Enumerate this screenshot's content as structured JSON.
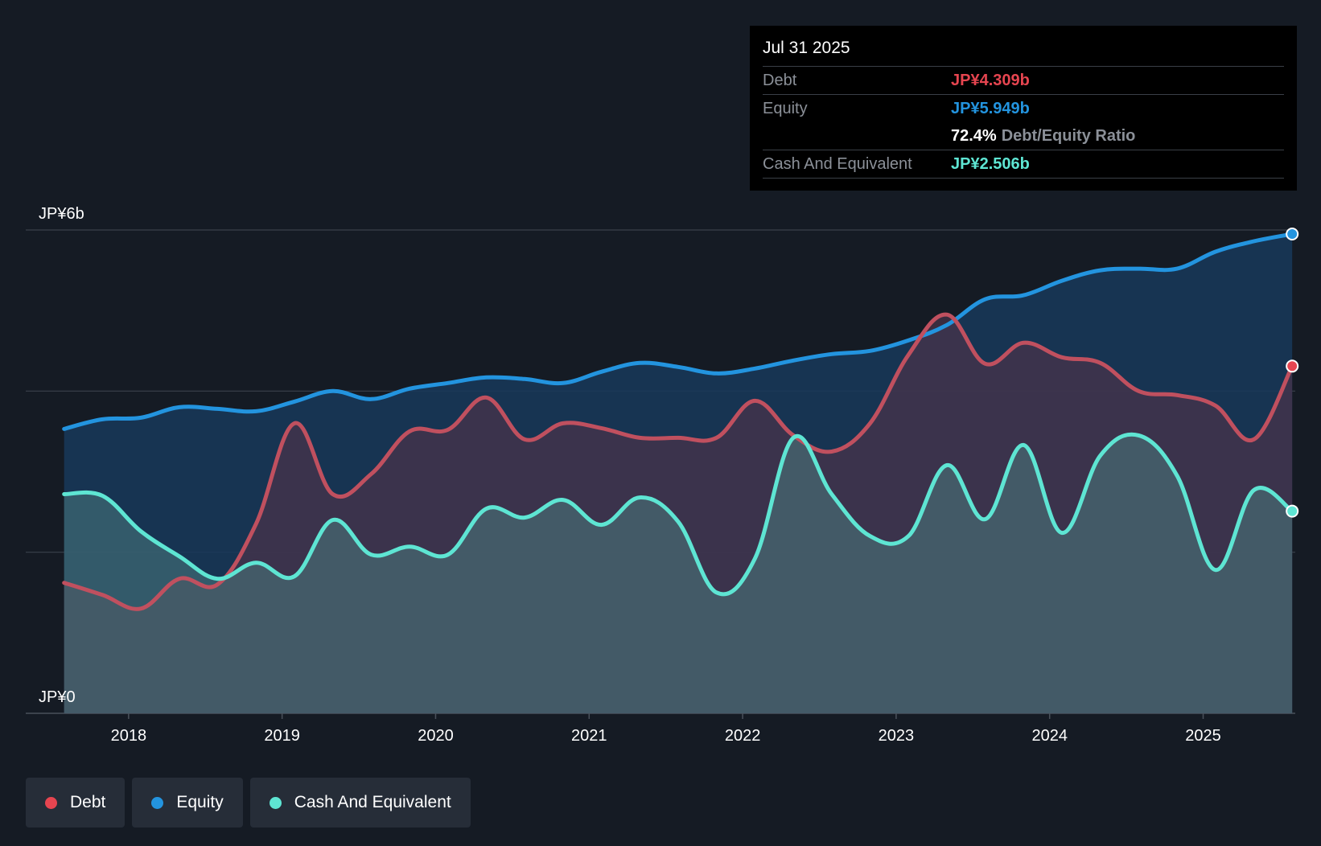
{
  "tooltip": {
    "date": "Jul 31 2025",
    "debt_label": "Debt",
    "debt_value": "JP¥4.309b",
    "equity_label": "Equity",
    "equity_value": "JP¥5.949b",
    "ratio_value": "72.4%",
    "ratio_label": "Debt/Equity Ratio",
    "cash_label": "Cash And Equivalent",
    "cash_value": "JP¥2.506b"
  },
  "legend": {
    "debt": "Debt",
    "equity": "Equity",
    "cash": "Cash And Equivalent"
  },
  "colors": {
    "background": "#151b24",
    "debt": "#e64550",
    "debt_line": "#c0505f",
    "equity": "#2394df",
    "cash": "#5ee5d3"
  },
  "chart_data": {
    "type": "area",
    "title": "",
    "xlabel": "",
    "ylabel": "",
    "y_ticks": [
      {
        "value": 6,
        "label": "JP¥6b"
      },
      {
        "value": 0,
        "label": "JP¥0"
      }
    ],
    "ylim": [
      0,
      6
    ],
    "xlim": [
      2017.33,
      2025.6
    ],
    "x_ticks": [
      {
        "value": 2018,
        "label": "2018"
      },
      {
        "value": 2019,
        "label": "2019"
      },
      {
        "value": 2020,
        "label": "2020"
      },
      {
        "value": 2021,
        "label": "2021"
      },
      {
        "value": 2022,
        "label": "2022"
      },
      {
        "value": 2023,
        "label": "2023"
      },
      {
        "value": 2024,
        "label": "2024"
      },
      {
        "value": 2025,
        "label": "2025"
      }
    ],
    "gridlines": [
      2,
      4,
      6
    ],
    "series": [
      {
        "name": "Equity",
        "x": [
          2017.58,
          2017.83,
          2018.08,
          2018.33,
          2018.58,
          2018.83,
          2019.08,
          2019.33,
          2019.58,
          2019.83,
          2020.08,
          2020.33,
          2020.58,
          2020.83,
          2021.08,
          2021.33,
          2021.58,
          2021.83,
          2022.08,
          2022.33,
          2022.58,
          2022.83,
          2023.08,
          2023.33,
          2023.58,
          2023.83,
          2024.08,
          2024.33,
          2024.58,
          2024.83,
          2025.08,
          2025.33,
          2025.58
        ],
        "values": [
          3.53,
          3.65,
          3.67,
          3.8,
          3.78,
          3.75,
          3.87,
          4.0,
          3.9,
          4.03,
          4.1,
          4.17,
          4.15,
          4.1,
          4.24,
          4.35,
          4.3,
          4.22,
          4.28,
          4.38,
          4.46,
          4.5,
          4.63,
          4.82,
          5.14,
          5.19,
          5.37,
          5.5,
          5.52,
          5.52,
          5.73,
          5.86,
          5.95
        ]
      },
      {
        "name": "Debt",
        "x": [
          2017.58,
          2017.83,
          2018.08,
          2018.33,
          2018.58,
          2018.83,
          2019.08,
          2019.33,
          2019.58,
          2019.83,
          2020.08,
          2020.33,
          2020.58,
          2020.83,
          2021.08,
          2021.33,
          2021.58,
          2021.83,
          2022.08,
          2022.33,
          2022.58,
          2022.83,
          2023.08,
          2023.33,
          2023.58,
          2023.83,
          2024.08,
          2024.33,
          2024.58,
          2024.83,
          2025.08,
          2025.33,
          2025.58
        ],
        "values": [
          1.62,
          1.47,
          1.3,
          1.67,
          1.6,
          2.35,
          3.6,
          2.72,
          2.97,
          3.5,
          3.52,
          3.92,
          3.4,
          3.6,
          3.54,
          3.42,
          3.42,
          3.42,
          3.88,
          3.45,
          3.25,
          3.6,
          4.45,
          4.95,
          4.34,
          4.6,
          4.42,
          4.35,
          4.0,
          3.95,
          3.82,
          3.4,
          4.31
        ]
      },
      {
        "name": "Cash And Equivalent",
        "x": [
          2017.58,
          2017.83,
          2018.08,
          2018.33,
          2018.58,
          2018.83,
          2019.08,
          2019.33,
          2019.58,
          2019.83,
          2020.08,
          2020.33,
          2020.58,
          2020.83,
          2021.08,
          2021.33,
          2021.58,
          2021.83,
          2022.08,
          2022.33,
          2022.58,
          2022.83,
          2023.08,
          2023.33,
          2023.58,
          2023.83,
          2024.08,
          2024.33,
          2024.58,
          2024.83,
          2025.08,
          2025.33,
          2025.58
        ],
        "values": [
          2.72,
          2.7,
          2.26,
          1.95,
          1.67,
          1.87,
          1.7,
          2.4,
          1.97,
          2.07,
          1.97,
          2.54,
          2.43,
          2.65,
          2.34,
          2.68,
          2.38,
          1.5,
          1.92,
          3.42,
          2.72,
          2.2,
          2.2,
          3.08,
          2.41,
          3.33,
          2.24,
          3.2,
          3.45,
          2.95,
          1.78,
          2.77,
          2.51
        ]
      }
    ]
  }
}
